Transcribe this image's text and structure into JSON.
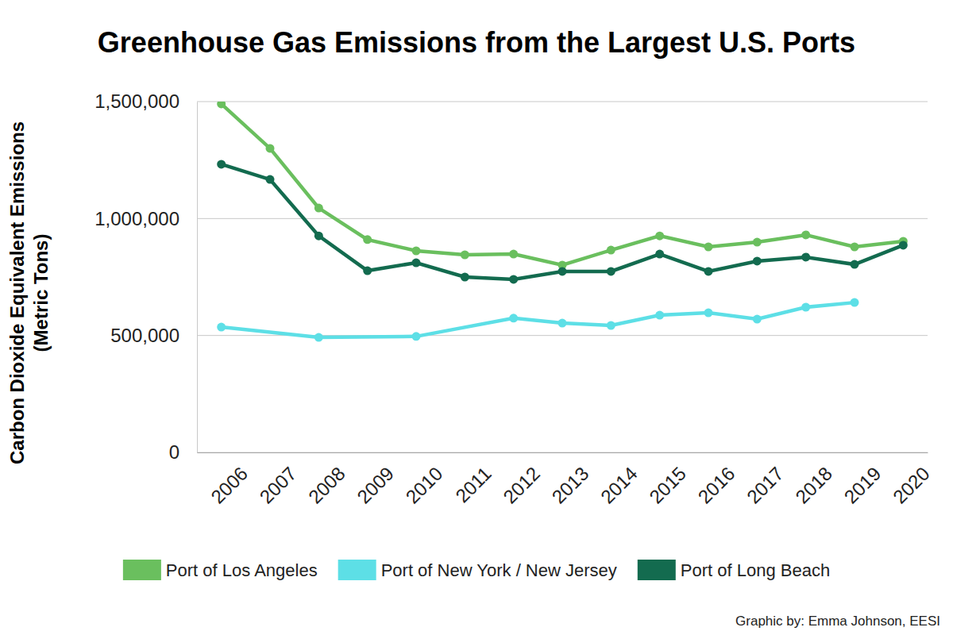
{
  "chart_data": {
    "type": "line",
    "title": "Greenhouse Gas Emissions from the Largest U.S. Ports",
    "y_label": [
      "Carbon Dioxide Equivalent Emissions",
      "(Metric Tons)"
    ],
    "source": "Graphic by: Emma Johnson, EESI",
    "x": [
      2006,
      2007,
      2008,
      2009,
      2010,
      2011,
      2012,
      2013,
      2014,
      2015,
      2016,
      2017,
      2018,
      2019,
      2020
    ],
    "xlim": [
      2005.5,
      2020.5
    ],
    "xticks": [
      2006,
      2007,
      2008,
      2009,
      2010,
      2011,
      2012,
      2013,
      2014,
      2015,
      2016,
      2017,
      2018,
      2019,
      2020
    ],
    "ylim": [
      0,
      1500000
    ],
    "yticks": [
      0,
      {
        "value": 500000,
        "label": "500,000"
      },
      {
        "value": 1000000,
        "label": "1,000,000"
      },
      {
        "value": 1500000,
        "label": "1,500,000"
      }
    ],
    "grid": true,
    "legend": "bottom",
    "marker": "circle",
    "series": [
      {
        "name": "Port of Los Angeles",
        "color": "#6abf5e",
        "values": [
          1490000,
          1300000,
          1045000,
          910000,
          862000,
          845000,
          848000,
          801000,
          865000,
          926000,
          879000,
          899000,
          930000,
          879000,
          903000
        ]
      },
      {
        "name": "Port of New York / New Jersey",
        "color": "#5ddfe6",
        "x": [
          2006,
          2008,
          2010,
          2012,
          2013,
          2014,
          2015,
          2016,
          2017,
          2018,
          2019
        ],
        "values": [
          536000,
          492000,
          496000,
          574000,
          553000,
          543000,
          587000,
          597000,
          570000,
          621000,
          641000
        ]
      },
      {
        "name": "Port of Long Beach",
        "color": "#136b4f",
        "values": [
          1232000,
          1167000,
          926000,
          777000,
          811000,
          750000,
          740000,
          774000,
          774000,
          848000,
          774000,
          818000,
          835000,
          804000,
          886000
        ]
      }
    ]
  }
}
